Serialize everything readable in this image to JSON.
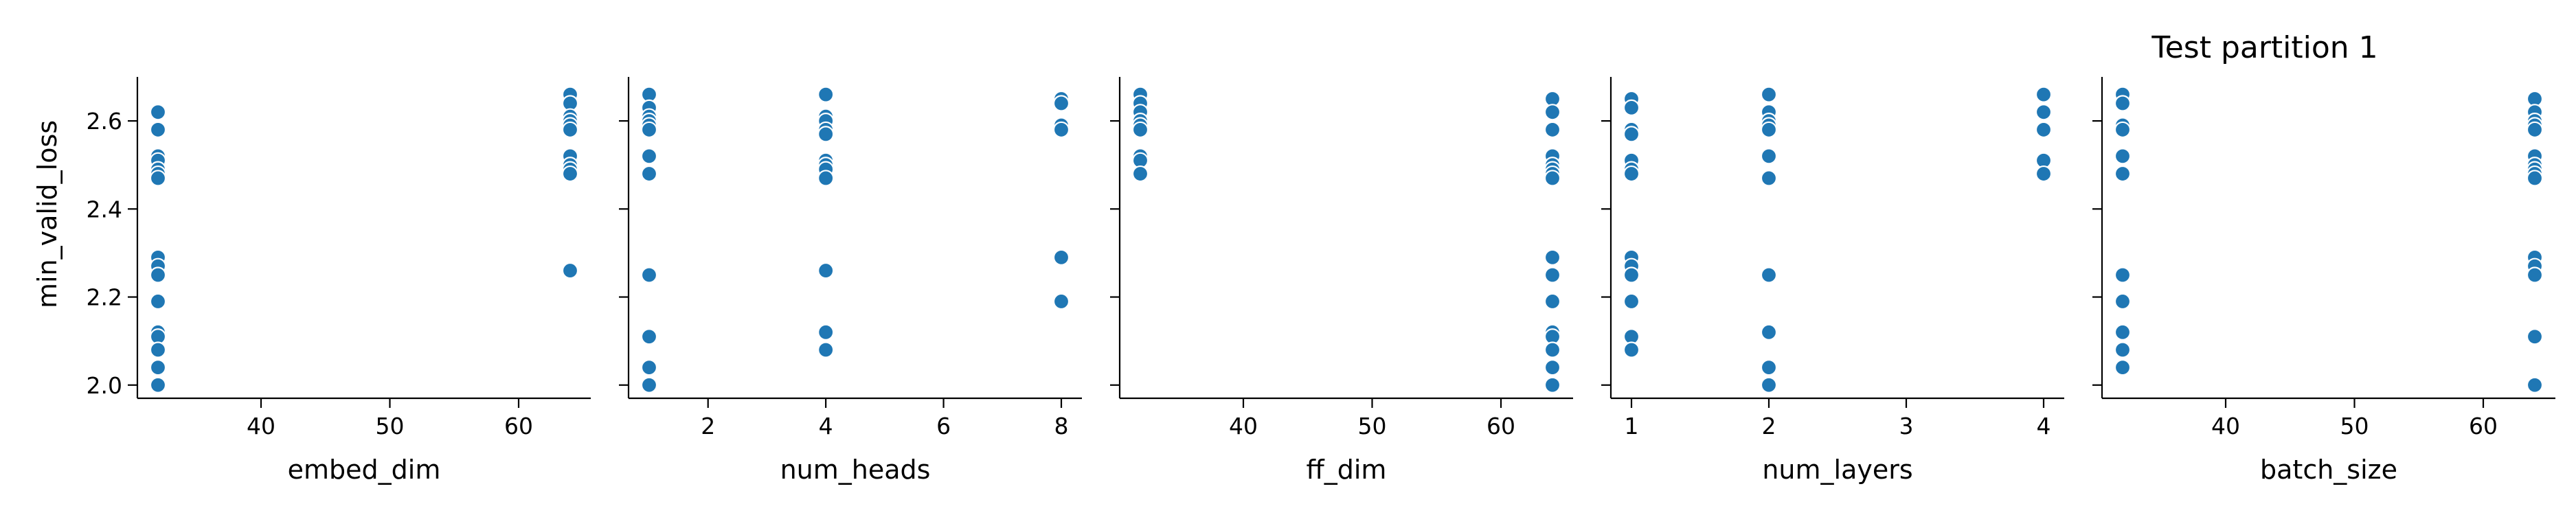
{
  "figure_title": "Test partition 1",
  "chart_data": {
    "type": "scatter",
    "ylabel": "min_valid_loss",
    "ylim": [
      1.97,
      2.7
    ],
    "yticks": [
      2.0,
      2.2,
      2.4,
      2.6
    ],
    "ytick_labels": [
      "2.0",
      "2.2",
      "2.4",
      "2.6"
    ],
    "point_color": "#1f77b4",
    "grid": false,
    "panels": [
      {
        "xlabel": "embed_dim",
        "xlim": [
          30.4,
          65.6
        ],
        "xticks": [
          40,
          50,
          60
        ],
        "xtick_labels": [
          "40",
          "50",
          "60"
        ],
        "points": [
          {
            "x": 32,
            "y": 2.62
          },
          {
            "x": 32,
            "y": 2.58
          },
          {
            "x": 32,
            "y": 2.52
          },
          {
            "x": 32,
            "y": 2.51
          },
          {
            "x": 32,
            "y": 2.49
          },
          {
            "x": 32,
            "y": 2.48
          },
          {
            "x": 32,
            "y": 2.47
          },
          {
            "x": 32,
            "y": 2.29
          },
          {
            "x": 32,
            "y": 2.27
          },
          {
            "x": 32,
            "y": 2.25
          },
          {
            "x": 32,
            "y": 2.19
          },
          {
            "x": 32,
            "y": 2.12
          },
          {
            "x": 32,
            "y": 2.11
          },
          {
            "x": 32,
            "y": 2.08
          },
          {
            "x": 32,
            "y": 2.04
          },
          {
            "x": 32,
            "y": 2.0
          },
          {
            "x": 64,
            "y": 2.66
          },
          {
            "x": 64,
            "y": 2.64
          },
          {
            "x": 64,
            "y": 2.61
          },
          {
            "x": 64,
            "y": 2.6
          },
          {
            "x": 64,
            "y": 2.59
          },
          {
            "x": 64,
            "y": 2.58
          },
          {
            "x": 64,
            "y": 2.52
          },
          {
            "x": 64,
            "y": 2.5
          },
          {
            "x": 64,
            "y": 2.49
          },
          {
            "x": 64,
            "y": 2.48
          },
          {
            "x": 64,
            "y": 2.26
          }
        ]
      },
      {
        "xlabel": "num_heads",
        "xlim": [
          0.65,
          8.35
        ],
        "xticks": [
          2,
          4,
          6,
          8
        ],
        "xtick_labels": [
          "2",
          "4",
          "6",
          "8"
        ],
        "points": [
          {
            "x": 1,
            "y": 2.66
          },
          {
            "x": 1,
            "y": 2.63
          },
          {
            "x": 1,
            "y": 2.61
          },
          {
            "x": 1,
            "y": 2.6
          },
          {
            "x": 1,
            "y": 2.59
          },
          {
            "x": 1,
            "y": 2.58
          },
          {
            "x": 1,
            "y": 2.52
          },
          {
            "x": 1,
            "y": 2.48
          },
          {
            "x": 1,
            "y": 2.25
          },
          {
            "x": 1,
            "y": 2.11
          },
          {
            "x": 1,
            "y": 2.04
          },
          {
            "x": 1,
            "y": 2.0
          },
          {
            "x": 4,
            "y": 2.66
          },
          {
            "x": 4,
            "y": 2.61
          },
          {
            "x": 4,
            "y": 2.6
          },
          {
            "x": 4,
            "y": 2.58
          },
          {
            "x": 4,
            "y": 2.57
          },
          {
            "x": 4,
            "y": 2.51
          },
          {
            "x": 4,
            "y": 2.5
          },
          {
            "x": 4,
            "y": 2.49
          },
          {
            "x": 4,
            "y": 2.47
          },
          {
            "x": 4,
            "y": 2.26
          },
          {
            "x": 4,
            "y": 2.12
          },
          {
            "x": 4,
            "y": 2.08
          },
          {
            "x": 8,
            "y": 2.65
          },
          {
            "x": 8,
            "y": 2.64
          },
          {
            "x": 8,
            "y": 2.59
          },
          {
            "x": 8,
            "y": 2.58
          },
          {
            "x": 8,
            "y": 2.29
          },
          {
            "x": 8,
            "y": 2.19
          }
        ]
      },
      {
        "xlabel": "ff_dim",
        "xlim": [
          30.4,
          65.6
        ],
        "xticks": [
          40,
          50,
          60
        ],
        "xtick_labels": [
          "40",
          "50",
          "60"
        ],
        "points": [
          {
            "x": 32,
            "y": 2.66
          },
          {
            "x": 32,
            "y": 2.64
          },
          {
            "x": 32,
            "y": 2.62
          },
          {
            "x": 32,
            "y": 2.6
          },
          {
            "x": 32,
            "y": 2.59
          },
          {
            "x": 32,
            "y": 2.58
          },
          {
            "x": 32,
            "y": 2.52
          },
          {
            "x": 32,
            "y": 2.51
          },
          {
            "x": 32,
            "y": 2.48
          },
          {
            "x": 64,
            "y": 2.65
          },
          {
            "x": 64,
            "y": 2.62
          },
          {
            "x": 64,
            "y": 2.58
          },
          {
            "x": 64,
            "y": 2.52
          },
          {
            "x": 64,
            "y": 2.5
          },
          {
            "x": 64,
            "y": 2.49
          },
          {
            "x": 64,
            "y": 2.48
          },
          {
            "x": 64,
            "y": 2.47
          },
          {
            "x": 64,
            "y": 2.29
          },
          {
            "x": 64,
            "y": 2.25
          },
          {
            "x": 64,
            "y": 2.19
          },
          {
            "x": 64,
            "y": 2.12
          },
          {
            "x": 64,
            "y": 2.11
          },
          {
            "x": 64,
            "y": 2.08
          },
          {
            "x": 64,
            "y": 2.04
          },
          {
            "x": 64,
            "y": 2.0
          }
        ]
      },
      {
        "xlabel": "num_layers",
        "xlim": [
          0.85,
          4.15
        ],
        "xticks": [
          1,
          2,
          3,
          4
        ],
        "xtick_labels": [
          "1",
          "2",
          "3",
          "4"
        ],
        "points": [
          {
            "x": 1,
            "y": 2.65
          },
          {
            "x": 1,
            "y": 2.63
          },
          {
            "x": 1,
            "y": 2.58
          },
          {
            "x": 1,
            "y": 2.57
          },
          {
            "x": 1,
            "y": 2.51
          },
          {
            "x": 1,
            "y": 2.49
          },
          {
            "x": 1,
            "y": 2.48
          },
          {
            "x": 1,
            "y": 2.29
          },
          {
            "x": 1,
            "y": 2.27
          },
          {
            "x": 1,
            "y": 2.25
          },
          {
            "x": 1,
            "y": 2.19
          },
          {
            "x": 1,
            "y": 2.11
          },
          {
            "x": 1,
            "y": 2.08
          },
          {
            "x": 2,
            "y": 2.66
          },
          {
            "x": 2,
            "y": 2.62
          },
          {
            "x": 2,
            "y": 2.6
          },
          {
            "x": 2,
            "y": 2.59
          },
          {
            "x": 2,
            "y": 2.58
          },
          {
            "x": 2,
            "y": 2.52
          },
          {
            "x": 2,
            "y": 2.47
          },
          {
            "x": 2,
            "y": 2.25
          },
          {
            "x": 2,
            "y": 2.12
          },
          {
            "x": 2,
            "y": 2.04
          },
          {
            "x": 2,
            "y": 2.0
          },
          {
            "x": 4,
            "y": 2.66
          },
          {
            "x": 4,
            "y": 2.62
          },
          {
            "x": 4,
            "y": 2.58
          },
          {
            "x": 4,
            "y": 2.51
          },
          {
            "x": 4,
            "y": 2.48
          }
        ]
      },
      {
        "xlabel": "batch_size",
        "xlim": [
          30.4,
          65.6
        ],
        "xticks": [
          40,
          50,
          60
        ],
        "xtick_labels": [
          "40",
          "50",
          "60"
        ],
        "points": [
          {
            "x": 32,
            "y": 2.66
          },
          {
            "x": 32,
            "y": 2.64
          },
          {
            "x": 32,
            "y": 2.59
          },
          {
            "x": 32,
            "y": 2.58
          },
          {
            "x": 32,
            "y": 2.52
          },
          {
            "x": 32,
            "y": 2.48
          },
          {
            "x": 32,
            "y": 2.25
          },
          {
            "x": 32,
            "y": 2.19
          },
          {
            "x": 32,
            "y": 2.12
          },
          {
            "x": 32,
            "y": 2.08
          },
          {
            "x": 32,
            "y": 2.04
          },
          {
            "x": 64,
            "y": 2.65
          },
          {
            "x": 64,
            "y": 2.62
          },
          {
            "x": 64,
            "y": 2.6
          },
          {
            "x": 64,
            "y": 2.59
          },
          {
            "x": 64,
            "y": 2.58
          },
          {
            "x": 64,
            "y": 2.52
          },
          {
            "x": 64,
            "y": 2.5
          },
          {
            "x": 64,
            "y": 2.49
          },
          {
            "x": 64,
            "y": 2.48
          },
          {
            "x": 64,
            "y": 2.47
          },
          {
            "x": 64,
            "y": 2.29
          },
          {
            "x": 64,
            "y": 2.27
          },
          {
            "x": 64,
            "y": 2.25
          },
          {
            "x": 64,
            "y": 2.11
          },
          {
            "x": 64,
            "y": 2.0
          }
        ]
      }
    ]
  }
}
